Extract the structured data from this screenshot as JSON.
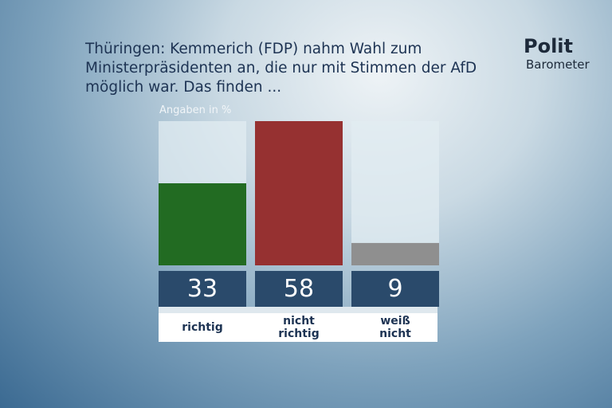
{
  "chart_data": {
    "type": "bar",
    "title": "Thüringen: Kemmerich (FDP) nahm Wahl zum Ministerpräsidenten an, die nur mit Stimmen der AfD möglich war. Das finden ...",
    "subtitle": "Angaben in %",
    "categories": [
      "richtig",
      "nicht richtig",
      "weiß nicht"
    ],
    "values": [
      33,
      58,
      9
    ],
    "colors": [
      "#226b22",
      "#963131",
      "#8f8f8f"
    ],
    "ylim": [
      0,
      58
    ]
  },
  "logo": {
    "line1": "Polit",
    "line2": "Barometer"
  }
}
